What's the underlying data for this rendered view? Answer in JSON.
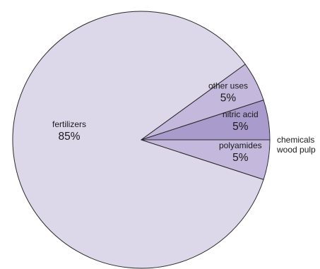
{
  "chart_data": {
    "type": "pie",
    "title": "",
    "slices": [
      {
        "label": "fertilizers",
        "value": 85,
        "value_label": "85%",
        "color": "#ddd7ea"
      },
      {
        "label": "other uses",
        "value": 5,
        "value_label": "5%",
        "color": "#c4b9dd",
        "outer_label": [
          "chemicals",
          "wood pulp"
        ]
      },
      {
        "label": "nitric acid",
        "value": 5,
        "value_label": "5%",
        "color": "#a99bcb"
      },
      {
        "label": "polyamides",
        "value": 5,
        "value_label": "5%",
        "color": "#c4b9dd"
      }
    ],
    "legend": "none"
  }
}
